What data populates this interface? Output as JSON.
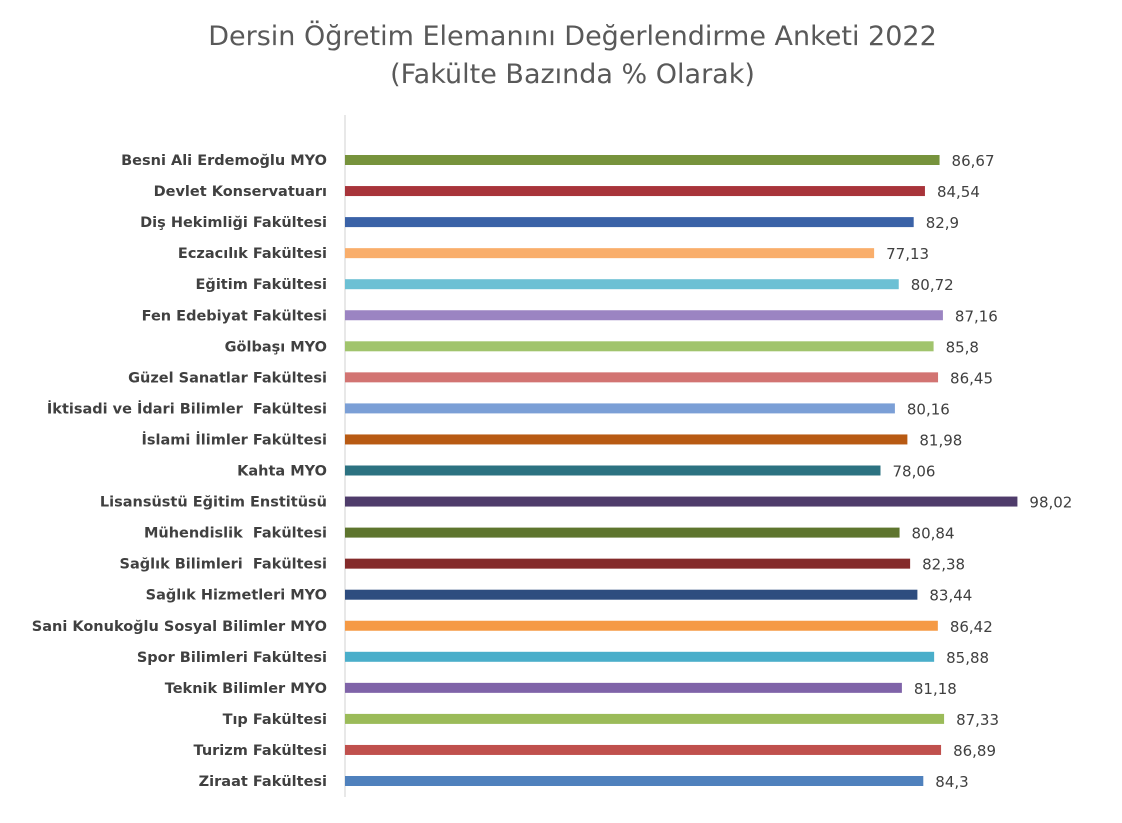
{
  "chart_data": {
    "type": "bar",
    "orientation": "horizontal",
    "title": "Dersin Öğretim Elemanını Değerlendirme Anketi 2022",
    "subtitle": "(Fakülte Bazında % Olarak)",
    "xlabel": "",
    "ylabel": "",
    "xlim": [
      0,
      100
    ],
    "grid": false,
    "legend": "none",
    "categories": [
      "Besni Ali Erdemoğlu MYO",
      "Devlet Konservatuarı",
      "Diş Hekimliği Fakültesi",
      "Eczacılık Fakültesi",
      "Eğitim Fakültesi",
      "Fen Edebiyat Fakültesi",
      "Gölbaşı MYO",
      "Güzel Sanatlar Fakültesi",
      "İktisadi ve İdari Bilimler  Fakültesi",
      "İslami İlimler Fakültesi",
      "Kahta MYO",
      "Lisansüstü Eğitim Enstitüsü",
      "Mühendislik  Fakültesi",
      "Sağlık Bilimleri  Fakültesi",
      "Sağlık Hizmetleri MYO",
      "Sani Konukoğlu Sosyal Bilimler MYO",
      "Spor Bilimleri Fakültesi",
      "Teknik Bilimler MYO",
      "Tıp Fakültesi",
      "Turizm Fakültesi",
      "Ziraat Fakültesi"
    ],
    "values": [
      86.67,
      84.54,
      82.9,
      77.13,
      80.72,
      87.16,
      85.8,
      86.45,
      80.16,
      81.98,
      78.06,
      98.02,
      80.84,
      82.38,
      83.44,
      86.42,
      85.88,
      81.18,
      87.33,
      86.89,
      84.3
    ],
    "value_labels": [
      "86,67",
      "84,54",
      "82,9",
      "77,13",
      "80,72",
      "87,16",
      "85,8",
      "86,45",
      "80,16",
      "81,98",
      "78,06",
      "98,02",
      "80,84",
      "82,38",
      "83,44",
      "86,42",
      "85,88",
      "81,18",
      "87,33",
      "86,89",
      "84,3"
    ],
    "colors": [
      "#77933C",
      "#A8343A",
      "#3A62A7",
      "#F9AE6B",
      "#6CC0D4",
      "#9B84C2",
      "#A1C46D",
      "#D27472",
      "#7B9FD6",
      "#B85A13",
      "#2C7281",
      "#4F3C6B",
      "#5E752E",
      "#842B2B",
      "#2E4D7F",
      "#F59A45",
      "#4AAECA",
      "#7F63A8",
      "#9BBB59",
      "#C0504D",
      "#4F81BD"
    ]
  }
}
